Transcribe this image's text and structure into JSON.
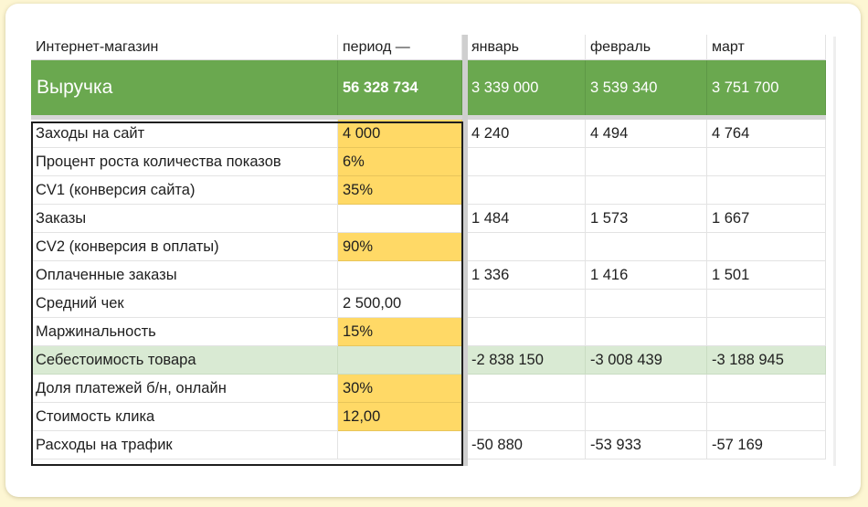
{
  "header": {
    "col_a": "Интернет-магазин",
    "col_b": "период —",
    "months": [
      "январь",
      "февраль",
      "март"
    ]
  },
  "revenue": {
    "label": "Выручка",
    "total": "56 328 734",
    "months": [
      "3 339 000",
      "3 539 340",
      "3 751 700"
    ]
  },
  "rows": [
    {
      "label": "Заходы на сайт",
      "value": "4 000",
      "months": [
        "4 240",
        "4 494",
        "4 764"
      ]
    },
    {
      "label": "Процент роста количества показов",
      "value": "6%",
      "months": [
        "",
        "",
        ""
      ]
    },
    {
      "label": "CV1 (конверсия сайта)",
      "value": "35%",
      "months": [
        "",
        "",
        ""
      ]
    },
    {
      "label": "Заказы",
      "value": "",
      "months": [
        "1 484",
        "1 573",
        "1 667"
      ]
    },
    {
      "label": "CV2 (конверсия в оплаты)",
      "value": "90%",
      "months": [
        "",
        "",
        ""
      ]
    },
    {
      "label": "Оплаченные заказы",
      "value": "",
      "months": [
        "1 336",
        "1 416",
        "1 501"
      ]
    },
    {
      "label": "Средний чек",
      "value": "2 500,00",
      "months": [
        "",
        "",
        ""
      ]
    },
    {
      "label": "Маржинальность",
      "value": "15%",
      "months": [
        "",
        "",
        ""
      ]
    },
    {
      "label": "Себестоимость товара",
      "value": "",
      "months": [
        "-2 838 150",
        "-3 008 439",
        "-3 188 945"
      ]
    },
    {
      "label": "Доля платежей б/н, онлайн",
      "value": "30%",
      "months": [
        "",
        "",
        ""
      ]
    },
    {
      "label": "Стоимость клика",
      "value": "12,00",
      "months": [
        "",
        "",
        ""
      ]
    },
    {
      "label": "Расходы на трафик",
      "value": "",
      "months": [
        "-50 880",
        "-53 933",
        "-57 169"
      ]
    }
  ],
  "colors": {
    "header_green": "#6aa84f",
    "input_yellow": "#ffd966",
    "highlight_green": "#d9ead3"
  }
}
